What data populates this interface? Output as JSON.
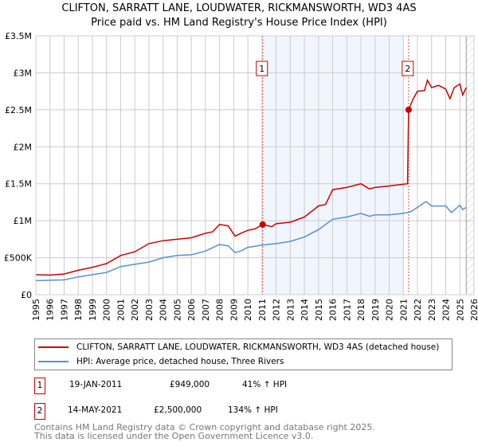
{
  "chart_data": {
    "type": "line",
    "title": "CLIFTON, SARRATT LANE, LOUDWATER, RICKMANSWORTH, WD3 4AS",
    "subtitle": "Price paid vs. HM Land Registry's House Price Index (HPI)",
    "xlim": [
      1995,
      2026
    ],
    "ylim": [
      0,
      3500000
    ],
    "x_ticks": [
      "1995",
      "1996",
      "1997",
      "1998",
      "1999",
      "2000",
      "2001",
      "2002",
      "2003",
      "2004",
      "2005",
      "2006",
      "2007",
      "2008",
      "2009",
      "2010",
      "2011",
      "2012",
      "2013",
      "2014",
      "2015",
      "2016",
      "2017",
      "2018",
      "2019",
      "2020",
      "2021",
      "2022",
      "2023",
      "2024",
      "2025",
      "2026"
    ],
    "y_ticks": [
      {
        "v": 0,
        "label": "£0"
      },
      {
        "v": 500000,
        "label": "£500K"
      },
      {
        "v": 1000000,
        "label": "£1M"
      },
      {
        "v": 1500000,
        "label": "£1.5M"
      },
      {
        "v": 2000000,
        "label": "£2M"
      },
      {
        "v": 2500000,
        "label": "£2.5M"
      },
      {
        "v": 3000000,
        "label": "£3M"
      },
      {
        "v": 3500000,
        "label": "£3.5M"
      }
    ],
    "grid": true,
    "shaded_range": [
      2011.05,
      2021.0
    ],
    "hatched_from": 2025.45,
    "series": [
      {
        "name": "CLIFTON, SARRATT LANE, LOUDWATER, RICKMANSWORTH, WD3 4AS (detached house)",
        "color": "#cc0000",
        "x": [
          1995,
          1996,
          1997,
          1998,
          1999,
          2000,
          2001,
          2002,
          2003,
          2004,
          2005,
          2006,
          2007,
          2007.5,
          2008,
          2008.6,
          2009.1,
          2009.5,
          2010,
          2010.5,
          2011.05,
          2011.7,
          2012,
          2013,
          2014,
          2015,
          2015.5,
          2016,
          2017,
          2018,
          2018.6,
          2019,
          2020,
          2021.3,
          2021.37,
          2021.7,
          2022,
          2022.5,
          2022.7,
          2023,
          2023.5,
          2024,
          2024.3,
          2024.6,
          2025,
          2025.2,
          2025.45
        ],
        "y": [
          270000,
          265000,
          280000,
          330000,
          370000,
          420000,
          530000,
          580000,
          690000,
          730000,
          750000,
          770000,
          830000,
          850000,
          950000,
          930000,
          790000,
          830000,
          870000,
          890000,
          949000,
          920000,
          960000,
          980000,
          1050000,
          1200000,
          1220000,
          1420000,
          1450000,
          1500000,
          1430000,
          1450000,
          1470000,
          1500000,
          2500000,
          2650000,
          2750000,
          2760000,
          2900000,
          2800000,
          2830000,
          2780000,
          2650000,
          2800000,
          2850000,
          2700000,
          2800000
        ]
      },
      {
        "name": "HPI: Average price, detached house, Three Rivers",
        "color": "#5b8fd0",
        "x": [
          1995,
          1996,
          1997,
          1998,
          1999,
          2000,
          2001,
          2002,
          2003,
          2004,
          2005,
          2006,
          2007,
          2008,
          2008.6,
          2009.1,
          2009.5,
          2010,
          2011,
          2012,
          2013,
          2014,
          2015,
          2016,
          2017,
          2018,
          2018.6,
          2019,
          2020,
          2021,
          2021.5,
          2022,
          2022.6,
          2023,
          2024,
          2024.4,
          2025,
          2025.2,
          2025.45
        ],
        "y": [
          190000,
          195000,
          200000,
          240000,
          270000,
          300000,
          380000,
          410000,
          440000,
          500000,
          530000,
          540000,
          590000,
          680000,
          660000,
          570000,
          590000,
          640000,
          670000,
          690000,
          720000,
          780000,
          880000,
          1020000,
          1050000,
          1100000,
          1060000,
          1080000,
          1080000,
          1100000,
          1120000,
          1180000,
          1260000,
          1200000,
          1200000,
          1110000,
          1210000,
          1150000,
          1180000
        ]
      }
    ],
    "sales": [
      {
        "label": "1",
        "x": 2011.05,
        "y": 949000
      },
      {
        "label": "2",
        "x": 2021.37,
        "y": 2500000
      }
    ]
  },
  "legend": {
    "items": [
      {
        "label": "CLIFTON, SARRATT LANE, LOUDWATER, RICKMANSWORTH, WD3 4AS (detached house)",
        "color": "#cc0000"
      },
      {
        "label": "HPI: Average price, detached house, Three Rivers",
        "color": "#5b8fd0"
      }
    ]
  },
  "transactions": [
    {
      "num": "1",
      "date": "19-JAN-2011",
      "price": "£949,000",
      "hpi": "41% ↑ HPI"
    },
    {
      "num": "2",
      "date": "14-MAY-2021",
      "price": "£2,500,000",
      "hpi": "134% ↑ HPI"
    }
  ],
  "footer": {
    "line1": "Contains HM Land Registry data © Crown copyright and database right 2025.",
    "line2": "This data is licensed under the Open Government Licence v3.0."
  }
}
